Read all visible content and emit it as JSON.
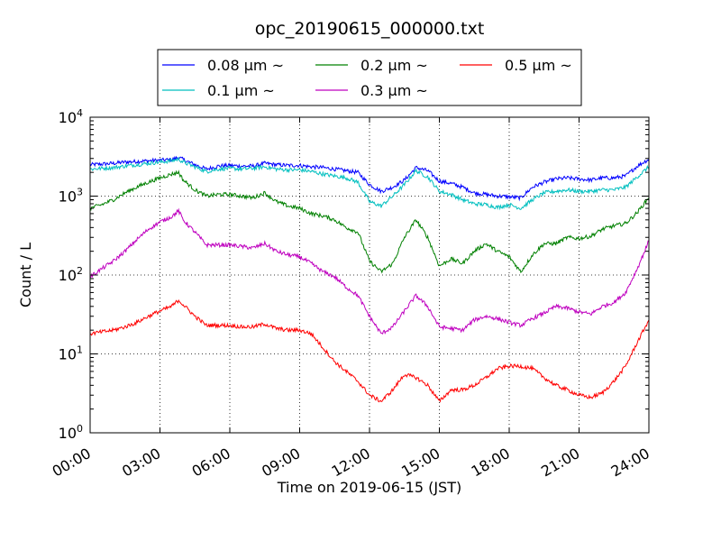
{
  "chart_data": {
    "type": "line",
    "title": "opc_20190615_000000.txt",
    "xlabel": "Time on 2019-06-15 (JST)",
    "ylabel": "Count / L",
    "yscale": "log",
    "ylim": [
      1,
      10000
    ],
    "xlim": [
      0,
      24
    ],
    "x_tick_labels": [
      "00:00",
      "03:00",
      "06:00",
      "09:00",
      "12:00",
      "15:00",
      "18:00",
      "21:00",
      "24:00"
    ],
    "x_ticks": [
      0,
      3,
      6,
      9,
      12,
      15,
      18,
      21,
      24
    ],
    "y_ticks": [
      {
        "base": "10",
        "exp": "0",
        "value": 1
      },
      {
        "base": "10",
        "exp": "1",
        "value": 10
      },
      {
        "base": "10",
        "exp": "2",
        "value": 100
      },
      {
        "base": "10",
        "exp": "3",
        "value": 1000
      },
      {
        "base": "10",
        "exp": "4",
        "value": 10000
      }
    ],
    "grid": true,
    "legend_placement": "top-center",
    "x": [
      0,
      0.5,
      1,
      1.5,
      2,
      2.5,
      3,
      3.5,
      3.8,
      4,
      4.5,
      5,
      5.5,
      6,
      6.5,
      7,
      7.5,
      8,
      8.5,
      9,
      9.5,
      10,
      10.5,
      11,
      11.5,
      12,
      12.5,
      13,
      13.5,
      14,
      14.5,
      15,
      15.5,
      16,
      16.5,
      17,
      17.5,
      18,
      18.5,
      19,
      19.5,
      20,
      20.5,
      21,
      21.5,
      22,
      22.5,
      23,
      23.5,
      24
    ],
    "series": [
      {
        "name": "0.08 μm ~",
        "color": "#0000ff",
        "values": [
          2500,
          2550,
          2600,
          2700,
          2750,
          2800,
          2850,
          2900,
          3100,
          2900,
          2500,
          2200,
          2400,
          2450,
          2400,
          2400,
          2600,
          2500,
          2450,
          2450,
          2350,
          2300,
          2200,
          2100,
          2000,
          1400,
          1150,
          1300,
          1600,
          2300,
          2100,
          1550,
          1450,
          1300,
          1100,
          1050,
          1000,
          980,
          950,
          1300,
          1500,
          1650,
          1700,
          1650,
          1600,
          1700,
          1700,
          1800,
          2400,
          2950
        ]
      },
      {
        "name": "0.1 μm ~",
        "color": "#00bfbf",
        "values": [
          2200,
          2250,
          2300,
          2400,
          2500,
          2600,
          2700,
          2800,
          2950,
          2700,
          2350,
          2050,
          2200,
          2250,
          2200,
          2250,
          2350,
          2200,
          2150,
          2150,
          2050,
          1900,
          1800,
          1700,
          1500,
          850,
          750,
          1000,
          1400,
          2100,
          1750,
          1150,
          1050,
          900,
          800,
          780,
          720,
          780,
          700,
          900,
          1100,
          1150,
          1200,
          1150,
          1150,
          1200,
          1200,
          1300,
          1750,
          2350
        ]
      },
      {
        "name": "0.2 μm ~",
        "color": "#008000",
        "values": [
          700,
          780,
          900,
          1100,
          1300,
          1500,
          1700,
          1900,
          2000,
          1600,
          1200,
          1000,
          1050,
          1050,
          1000,
          950,
          1100,
          850,
          750,
          700,
          600,
          560,
          500,
          400,
          350,
          150,
          110,
          140,
          300,
          500,
          300,
          130,
          160,
          140,
          200,
          250,
          200,
          170,
          110,
          180,
          250,
          250,
          300,
          290,
          310,
          380,
          420,
          450,
          620,
          960
        ]
      },
      {
        "name": "0.3 μm ~",
        "color": "#bf00bf",
        "values": [
          95,
          120,
          150,
          200,
          280,
          380,
          470,
          550,
          650,
          500,
          350,
          240,
          240,
          240,
          230,
          220,
          250,
          200,
          180,
          170,
          140,
          110,
          95,
          70,
          55,
          30,
          18,
          22,
          35,
          55,
          40,
          22,
          21,
          20,
          27,
          30,
          28,
          25,
          23,
          28,
          33,
          40,
          38,
          34,
          32,
          40,
          45,
          60,
          120,
          270
        ]
      },
      {
        "name": "0.5 μm ~",
        "color": "#ff0000",
        "values": [
          18,
          19,
          20,
          22,
          25,
          30,
          35,
          40,
          48,
          42,
          30,
          23,
          23,
          23,
          22,
          22,
          24,
          21,
          20,
          20,
          18,
          12,
          8,
          6,
          4.5,
          3,
          2.5,
          3.5,
          5.5,
          5,
          4,
          2.5,
          3.5,
          3.5,
          4,
          5,
          6.5,
          7,
          7,
          6.5,
          5,
          4,
          3.5,
          3,
          2.8,
          3.2,
          4.5,
          7,
          14,
          27
        ]
      }
    ]
  }
}
